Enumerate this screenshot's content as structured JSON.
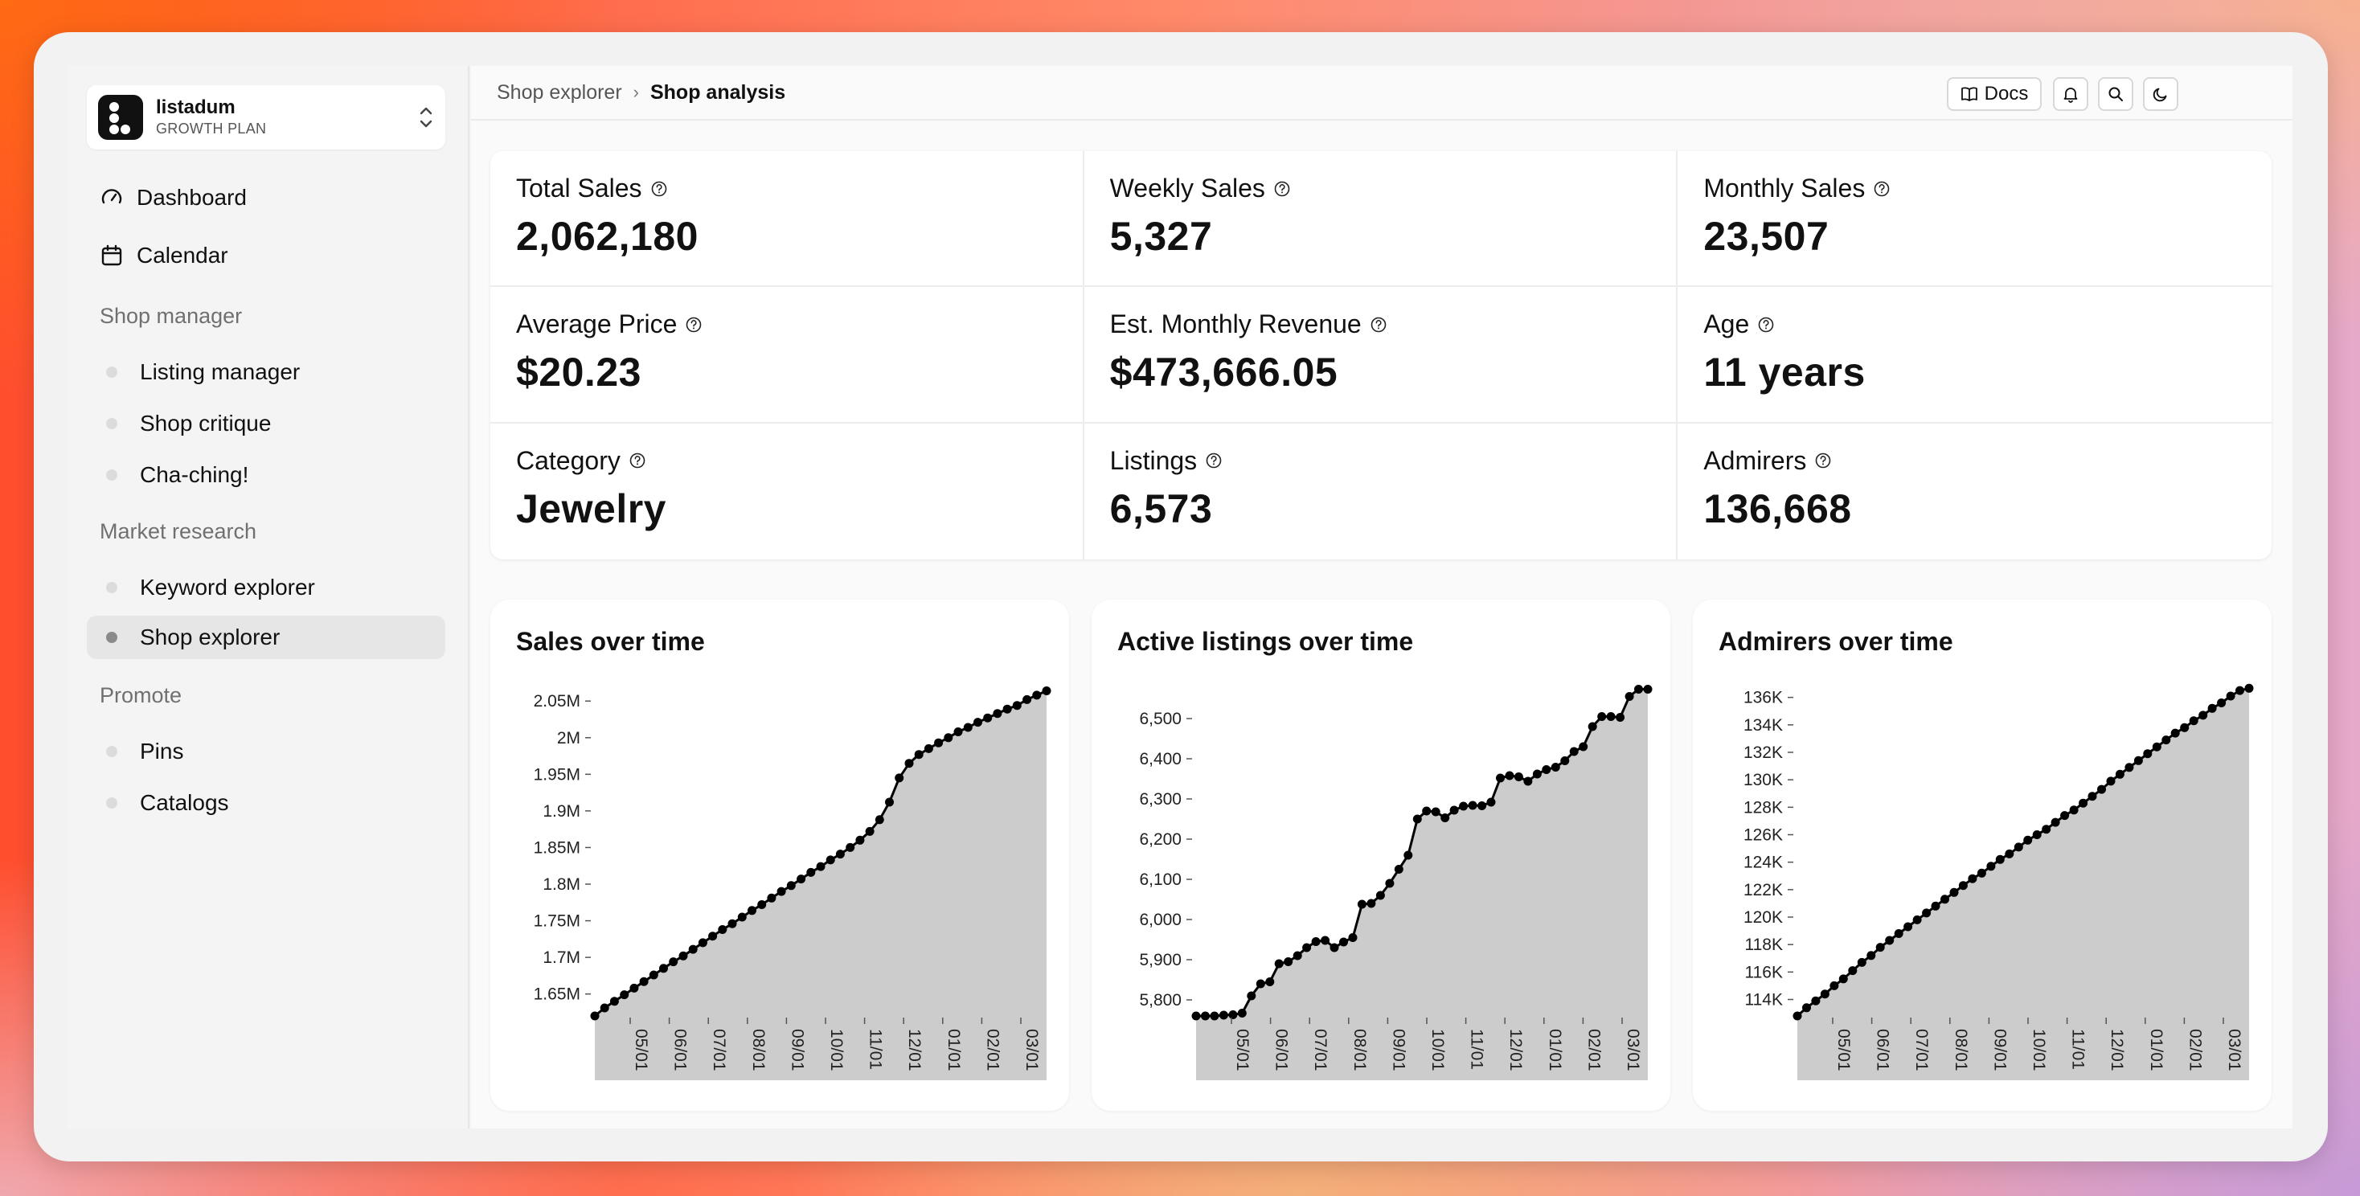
{
  "workspace": {
    "name": "listadum",
    "plan": "GROWTH PLAN"
  },
  "nav": {
    "dashboard": "Dashboard",
    "calendar": "Calendar"
  },
  "sections": {
    "shop_manager": {
      "title": "Shop manager",
      "items": [
        "Listing manager",
        "Shop critique",
        "Cha-ching!"
      ]
    },
    "market_research": {
      "title": "Market research",
      "items": [
        "Keyword explorer",
        "Shop explorer"
      ]
    },
    "promote": {
      "title": "Promote",
      "items": [
        "Pins",
        "Catalogs"
      ]
    }
  },
  "active_item": "Shop explorer",
  "breadcrumb": {
    "parent": "Shop explorer",
    "separator": "›",
    "current": "Shop analysis"
  },
  "toolbar": {
    "docs_label": "Docs"
  },
  "icons": [
    "dashboard-gauge-icon",
    "calendar-icon",
    "book-icon",
    "bell-icon",
    "search-icon",
    "moon-icon",
    "help-circle-icon",
    "chevron-updown-icon"
  ],
  "colors": {
    "accent": "#111111",
    "chart_fill": "#cccccc",
    "chart_line": "#000000"
  },
  "stats": [
    {
      "label": "Total Sales",
      "value": "2,062,180"
    },
    {
      "label": "Weekly Sales",
      "value": "5,327"
    },
    {
      "label": "Monthly Sales",
      "value": "23,507"
    },
    {
      "label": "Average Price",
      "value": "$20.23"
    },
    {
      "label": "Est. Monthly Revenue",
      "value": "$473,666.05"
    },
    {
      "label": "Age",
      "value": "11 years"
    },
    {
      "label": "Category",
      "value": "Jewelry"
    },
    {
      "label": "Listings",
      "value": "6,573"
    },
    {
      "label": "Admirers",
      "value": "136,668"
    }
  ],
  "chart_data": [
    {
      "type": "area",
      "title": "Sales over time",
      "ylim": [
        1620000,
        2070000
      ],
      "yticks": [
        1650000,
        1700000,
        1750000,
        1800000,
        1850000,
        1900000,
        1950000,
        2000000,
        2050000
      ],
      "ytick_labels": [
        "1.65M",
        "1.7M",
        "1.75M",
        "1.8M",
        "1.85M",
        "1.9M",
        "1.95M",
        "2M",
        "2.05M"
      ],
      "xtick_labels": [
        "05/01",
        "06/01",
        "07/01",
        "08/01",
        "09/01",
        "10/01",
        "11/01",
        "12/01",
        "01/01",
        "02/01",
        "03/01"
      ],
      "y": [
        1620000,
        1631000,
        1640000,
        1649000,
        1658000,
        1667000,
        1676000,
        1685000,
        1694000,
        1702000,
        1711000,
        1720000,
        1729000,
        1738000,
        1746000,
        1755000,
        1764000,
        1772000,
        1781000,
        1790000,
        1798000,
        1807000,
        1816000,
        1824000,
        1833000,
        1841000,
        1850000,
        1860000,
        1872000,
        1888000,
        1912000,
        1945000,
        1965000,
        1977000,
        1985000,
        1993000,
        2000000,
        2008000,
        2014000,
        2021000,
        2027000,
        2033000,
        2039000,
        2044000,
        2052000,
        2058000,
        2064000
      ]
    },
    {
      "type": "area",
      "title": "Active listings over time",
      "ylim": [
        5760,
        6580
      ],
      "yticks": [
        5800,
        5900,
        6000,
        6100,
        6200,
        6300,
        6400,
        6500
      ],
      "ytick_labels": [
        "5,800",
        "5,900",
        "6,000",
        "6,100",
        "6,200",
        "6,300",
        "6,400",
        "6,500"
      ],
      "xtick_labels": [
        "05/01",
        "06/01",
        "07/01",
        "08/01",
        "09/01",
        "10/01",
        "11/01",
        "12/01",
        "01/01",
        "02/01",
        "03/01"
      ],
      "y": [
        5760,
        5760,
        5760,
        5762,
        5763,
        5767,
        5810,
        5840,
        5845,
        5890,
        5895,
        5910,
        5930,
        5945,
        5948,
        5930,
        5944,
        5955,
        6038,
        6040,
        6060,
        6090,
        6125,
        6160,
        6250,
        6270,
        6268,
        6253,
        6272,
        6282,
        6284,
        6283,
        6292,
        6352,
        6358,
        6355,
        6344,
        6362,
        6373,
        6379,
        6395,
        6418,
        6430,
        6480,
        6505,
        6505,
        6503,
        6555,
        6573,
        6573
      ]
    },
    {
      "type": "area",
      "title": "Admirers over time",
      "ylim": [
        112800,
        136800
      ],
      "yticks": [
        114000,
        116000,
        118000,
        120000,
        122000,
        124000,
        126000,
        128000,
        130000,
        132000,
        134000,
        136000
      ],
      "ytick_labels": [
        "114K",
        "116K",
        "118K",
        "120K",
        "122K",
        "124K",
        "126K",
        "128K",
        "130K",
        "132K",
        "134K",
        "136K"
      ],
      "xtick_labels": [
        "05/01",
        "06/01",
        "07/01",
        "08/01",
        "09/01",
        "10/01",
        "11/01",
        "12/01",
        "01/01",
        "02/01",
        "03/01"
      ],
      "y": [
        112800,
        113400,
        113900,
        114400,
        115000,
        115500,
        116100,
        116700,
        117200,
        117800,
        118300,
        118800,
        119300,
        119800,
        120300,
        120800,
        121300,
        121800,
        122300,
        122800,
        123200,
        123700,
        124200,
        124600,
        125100,
        125600,
        126000,
        126400,
        126900,
        127400,
        127800,
        128300,
        128800,
        129300,
        129900,
        130400,
        130900,
        131400,
        131900,
        132400,
        132900,
        133400,
        133800,
        134300,
        134700,
        135200,
        135600,
        136100,
        136500,
        136668
      ]
    }
  ]
}
